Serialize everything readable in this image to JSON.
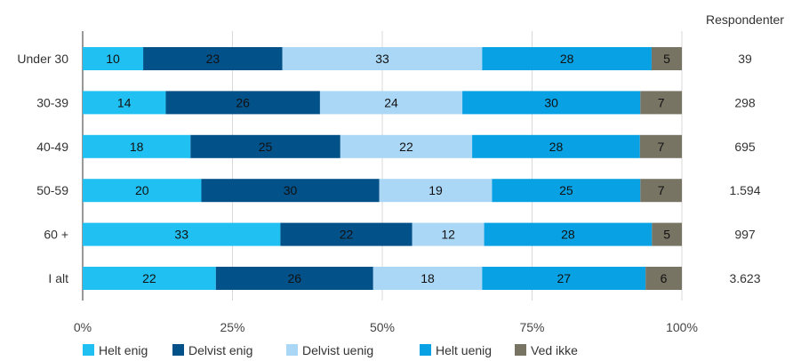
{
  "chart_data": {
    "type": "bar",
    "orientation": "horizontal",
    "stacked": true,
    "categories": [
      "Under 30",
      "30-39",
      "40-49",
      "50-59",
      "60 +",
      "I alt"
    ],
    "series": [
      {
        "name": "Helt enig",
        "color": "#21c0f2",
        "values": [
          10,
          14,
          18,
          20,
          33,
          22
        ]
      },
      {
        "name": "Delvist enig",
        "color": "#035189",
        "values": [
          23,
          26,
          25,
          30,
          22,
          26
        ]
      },
      {
        "name": "Delvist uenig",
        "color": "#abd7f6",
        "values": [
          33,
          24,
          22,
          19,
          12,
          18
        ]
      },
      {
        "name": "Helt uenig",
        "color": "#08a1e3",
        "values": [
          28,
          30,
          28,
          25,
          28,
          27
        ]
      },
      {
        "name": "Ved ikke",
        "color": "#777464",
        "values": [
          5,
          7,
          7,
          7,
          5,
          6
        ]
      }
    ],
    "xticks": [
      "0%",
      "25%",
      "50%",
      "75%",
      "100%"
    ],
    "xlim": [
      0,
      100
    ],
    "grid": true,
    "legend": "bottom-left",
    "respondents_title": "Respondenter",
    "respondents": [
      "39",
      "298",
      "695",
      "1.594",
      "997",
      "3.623"
    ]
  }
}
